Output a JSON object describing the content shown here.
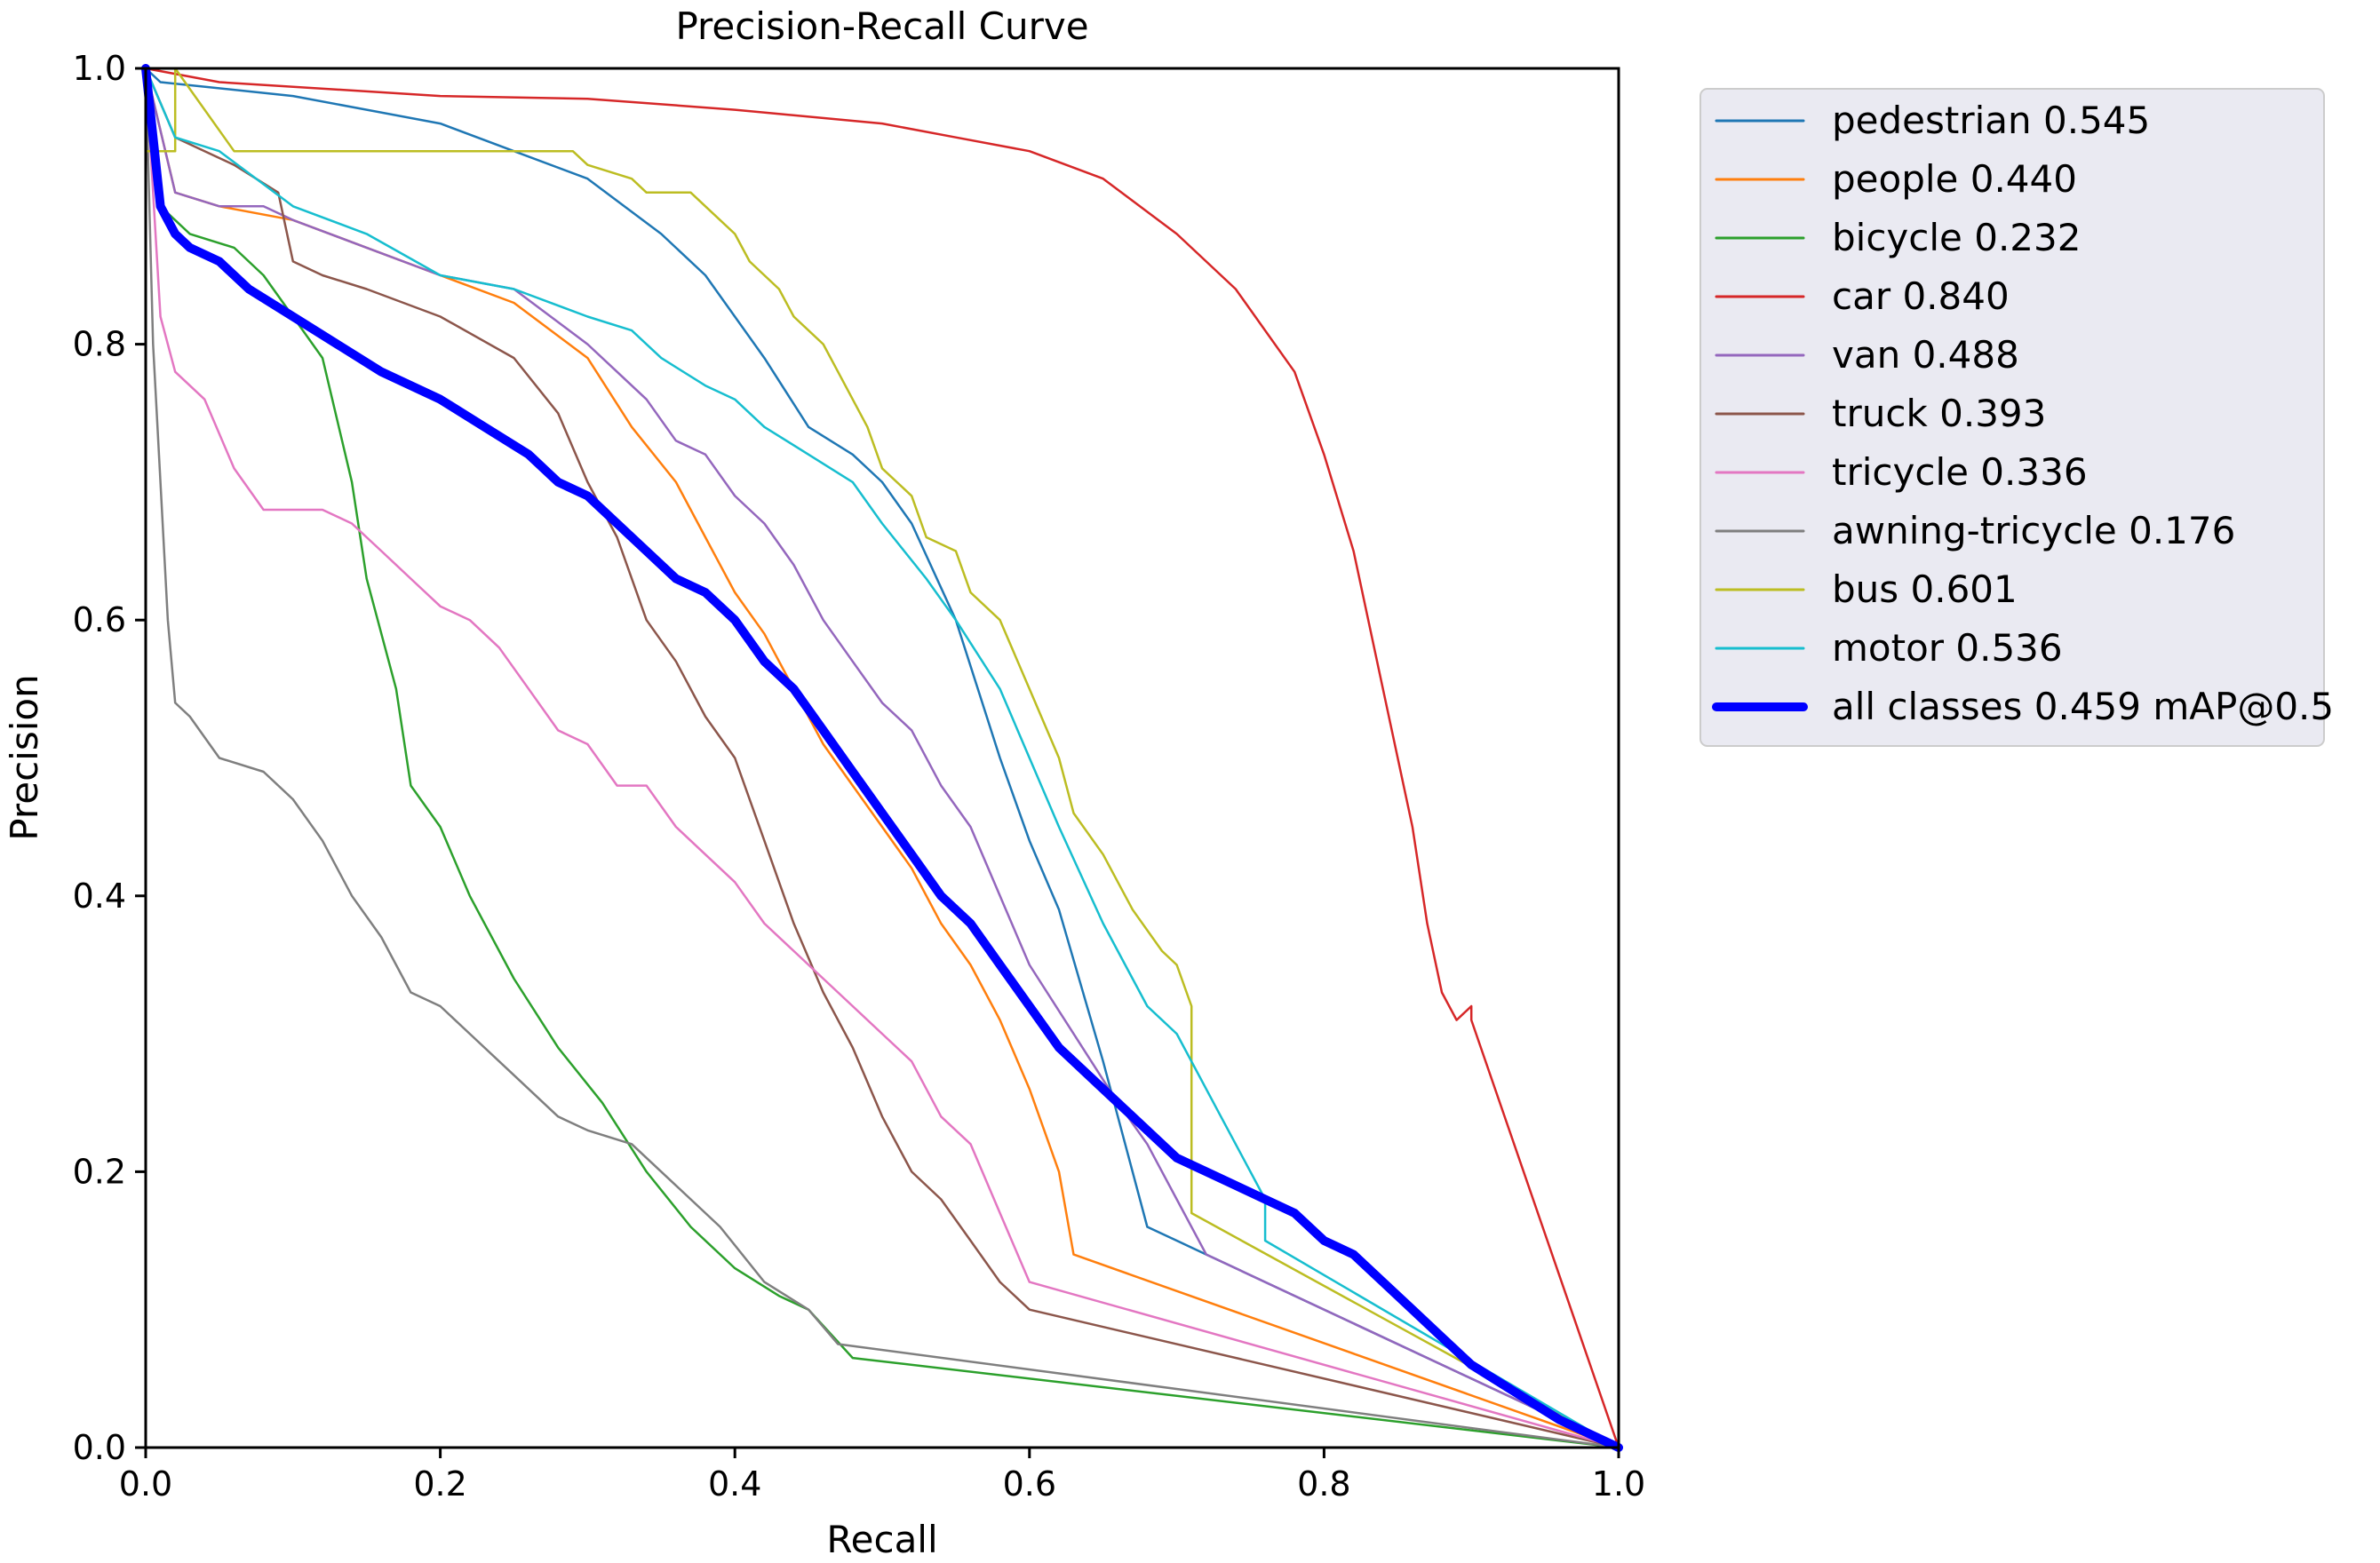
{
  "chart_data": {
    "type": "line",
    "title": "Precision-Recall Curve",
    "xlabel": "Recall",
    "ylabel": "Precision",
    "xlim": [
      0,
      1
    ],
    "ylim": [
      0,
      1
    ],
    "xticks": [
      "0.0",
      "0.2",
      "0.4",
      "0.6",
      "0.8",
      "1.0"
    ],
    "yticks": [
      "0.0",
      "0.2",
      "0.4",
      "0.6",
      "0.8",
      "1.0"
    ],
    "legend_position": "outside-right",
    "series": [
      {
        "name": "pedestrian 0.545",
        "color": "#1f77b4",
        "width": 2.5,
        "x": [
          0,
          0.01,
          0.1,
          0.2,
          0.25,
          0.3,
          0.35,
          0.38,
          0.42,
          0.45,
          0.48,
          0.5,
          0.52,
          0.55,
          0.58,
          0.6,
          0.62,
          0.65,
          0.68,
          0.7,
          0.72,
          1.0
        ],
        "y": [
          1,
          0.99,
          0.98,
          0.96,
          0.94,
          0.92,
          0.88,
          0.85,
          0.79,
          0.74,
          0.72,
          0.7,
          0.67,
          0.6,
          0.5,
          0.44,
          0.39,
          0.28,
          0.16,
          0.15,
          0.14,
          0.0
        ]
      },
      {
        "name": "people 0.440",
        "color": "#ff7f0e",
        "width": 2.5,
        "x": [
          0,
          0.02,
          0.05,
          0.1,
          0.15,
          0.2,
          0.25,
          0.3,
          0.33,
          0.36,
          0.38,
          0.4,
          0.42,
          0.44,
          0.46,
          0.48,
          0.5,
          0.52,
          0.54,
          0.56,
          0.58,
          0.6,
          0.62,
          0.63,
          1.0
        ],
        "y": [
          1,
          0.91,
          0.9,
          0.89,
          0.87,
          0.85,
          0.83,
          0.79,
          0.74,
          0.7,
          0.66,
          0.62,
          0.59,
          0.55,
          0.51,
          0.48,
          0.45,
          0.42,
          0.38,
          0.35,
          0.31,
          0.26,
          0.2,
          0.14,
          0.0
        ]
      },
      {
        "name": "bicycle 0.232",
        "color": "#2ca02c",
        "width": 2.5,
        "x": [
          0,
          0.01,
          0.03,
          0.06,
          0.08,
          0.1,
          0.12,
          0.14,
          0.15,
          0.17,
          0.18,
          0.2,
          0.22,
          0.25,
          0.28,
          0.31,
          0.34,
          0.37,
          0.4,
          0.43,
          0.45,
          0.48,
          1.0
        ],
        "y": [
          1,
          0.9,
          0.88,
          0.87,
          0.85,
          0.82,
          0.79,
          0.7,
          0.63,
          0.55,
          0.48,
          0.45,
          0.4,
          0.34,
          0.29,
          0.25,
          0.2,
          0.16,
          0.13,
          0.11,
          0.1,
          0.065,
          0.0
        ]
      },
      {
        "name": "car 0.840",
        "color": "#d62728",
        "width": 2.5,
        "x": [
          0,
          0.05,
          0.2,
          0.3,
          0.4,
          0.5,
          0.55,
          0.6,
          0.65,
          0.7,
          0.74,
          0.78,
          0.8,
          0.82,
          0.84,
          0.86,
          0.87,
          0.88,
          0.89,
          0.9,
          0.9,
          1.0
        ],
        "y": [
          1,
          0.99,
          0.98,
          0.978,
          0.97,
          0.96,
          0.95,
          0.94,
          0.92,
          0.88,
          0.84,
          0.78,
          0.72,
          0.65,
          0.55,
          0.45,
          0.38,
          0.33,
          0.31,
          0.32,
          0.31,
          0.0
        ]
      },
      {
        "name": "van 0.488",
        "color": "#9467bd",
        "width": 2.5,
        "x": [
          0,
          0.02,
          0.05,
          0.08,
          0.1,
          0.15,
          0.2,
          0.25,
          0.3,
          0.32,
          0.34,
          0.36,
          0.38,
          0.4,
          0.42,
          0.44,
          0.46,
          0.48,
          0.5,
          0.52,
          0.54,
          0.56,
          0.58,
          0.6,
          0.63,
          0.66,
          0.68,
          0.7,
          0.72,
          1.0
        ],
        "y": [
          1,
          0.91,
          0.9,
          0.9,
          0.89,
          0.87,
          0.85,
          0.84,
          0.8,
          0.78,
          0.76,
          0.73,
          0.72,
          0.69,
          0.67,
          0.64,
          0.6,
          0.57,
          0.54,
          0.52,
          0.48,
          0.45,
          0.4,
          0.35,
          0.3,
          0.25,
          0.22,
          0.18,
          0.14,
          0.0
        ]
      },
      {
        "name": "truck 0.393",
        "color": "#8c564b",
        "width": 2.5,
        "x": [
          0,
          0.02,
          0.04,
          0.06,
          0.09,
          0.1,
          0.12,
          0.15,
          0.2,
          0.25,
          0.28,
          0.3,
          0.32,
          0.34,
          0.36,
          0.38,
          0.4,
          0.42,
          0.44,
          0.46,
          0.48,
          0.5,
          0.52,
          0.54,
          0.56,
          0.58,
          0.6,
          1.0
        ],
        "y": [
          1,
          0.95,
          0.94,
          0.93,
          0.91,
          0.86,
          0.85,
          0.84,
          0.82,
          0.79,
          0.75,
          0.7,
          0.66,
          0.6,
          0.57,
          0.53,
          0.5,
          0.44,
          0.38,
          0.33,
          0.29,
          0.24,
          0.2,
          0.18,
          0.15,
          0.12,
          0.1,
          0.0
        ]
      },
      {
        "name": "tricycle 0.336",
        "color": "#e377c2",
        "width": 2.5,
        "x": [
          0,
          0.01,
          0.02,
          0.04,
          0.06,
          0.08,
          0.1,
          0.12,
          0.14,
          0.16,
          0.18,
          0.2,
          0.22,
          0.24,
          0.26,
          0.28,
          0.3,
          0.32,
          0.34,
          0.36,
          0.38,
          0.4,
          0.42,
          0.44,
          0.46,
          0.48,
          0.5,
          0.52,
          0.54,
          0.56,
          0.58,
          0.6,
          1.0
        ],
        "y": [
          1,
          0.82,
          0.78,
          0.76,
          0.71,
          0.68,
          0.68,
          0.68,
          0.67,
          0.65,
          0.63,
          0.61,
          0.6,
          0.58,
          0.55,
          0.52,
          0.51,
          0.48,
          0.48,
          0.45,
          0.43,
          0.41,
          0.38,
          0.36,
          0.34,
          0.32,
          0.3,
          0.28,
          0.24,
          0.22,
          0.17,
          0.12,
          0.0
        ]
      },
      {
        "name": "awning-tricycle 0.176",
        "color": "#7f7f7f",
        "width": 2.5,
        "x": [
          0,
          0.005,
          0.01,
          0.015,
          0.02,
          0.03,
          0.05,
          0.08,
          0.1,
          0.12,
          0.14,
          0.16,
          0.18,
          0.2,
          0.22,
          0.25,
          0.28,
          0.3,
          0.33,
          0.36,
          0.39,
          0.42,
          0.45,
          0.47,
          1.0
        ],
        "y": [
          1,
          0.8,
          0.7,
          0.6,
          0.54,
          0.53,
          0.5,
          0.49,
          0.47,
          0.44,
          0.4,
          0.37,
          0.33,
          0.32,
          0.3,
          0.27,
          0.24,
          0.23,
          0.22,
          0.19,
          0.16,
          0.12,
          0.1,
          0.075,
          0.0
        ]
      },
      {
        "name": "bus 0.601",
        "color": "#bcbd22",
        "width": 2.5,
        "x": [
          0,
          0.02,
          0.02,
          0.06,
          0.1,
          0.2,
          0.29,
          0.3,
          0.33,
          0.34,
          0.37,
          0.38,
          0.4,
          0.41,
          0.43,
          0.44,
          0.46,
          0.47,
          0.49,
          0.5,
          0.52,
          0.53,
          0.55,
          0.56,
          0.58,
          0.6,
          0.62,
          0.63,
          0.65,
          0.66,
          0.67,
          0.69,
          0.7,
          0.71,
          0.71,
          1.0
        ],
        "y": [
          0.94,
          0.94,
          1,
          0.94,
          0.94,
          0.94,
          0.94,
          0.93,
          0.92,
          0.91,
          0.91,
          0.9,
          0.88,
          0.86,
          0.84,
          0.82,
          0.8,
          0.78,
          0.74,
          0.71,
          0.69,
          0.66,
          0.65,
          0.62,
          0.6,
          0.55,
          0.5,
          0.46,
          0.43,
          0.41,
          0.39,
          0.36,
          0.35,
          0.32,
          0.17,
          0.0
        ]
      },
      {
        "name": "motor 0.536",
        "color": "#17becf",
        "width": 2.5,
        "x": [
          0,
          0.02,
          0.05,
          0.1,
          0.15,
          0.2,
          0.25,
          0.3,
          0.33,
          0.35,
          0.38,
          0.4,
          0.42,
          0.45,
          0.48,
          0.5,
          0.53,
          0.55,
          0.58,
          0.6,
          0.62,
          0.65,
          0.68,
          0.7,
          0.73,
          0.76,
          0.76,
          1.0
        ],
        "y": [
          1,
          0.95,
          0.94,
          0.9,
          0.88,
          0.85,
          0.84,
          0.82,
          0.81,
          0.79,
          0.77,
          0.76,
          0.74,
          0.72,
          0.7,
          0.67,
          0.63,
          0.6,
          0.55,
          0.5,
          0.45,
          0.38,
          0.32,
          0.3,
          0.24,
          0.18,
          0.15,
          0.0
        ]
      },
      {
        "name": "all classes 0.459 mAP@0.5",
        "color": "#0000ff",
        "width": 10,
        "x": [
          0,
          0.01,
          0.02,
          0.03,
          0.05,
          0.07,
          0.1,
          0.13,
          0.16,
          0.2,
          0.23,
          0.26,
          0.28,
          0.3,
          0.32,
          0.34,
          0.36,
          0.38,
          0.4,
          0.42,
          0.44,
          0.46,
          0.48,
          0.5,
          0.52,
          0.54,
          0.56,
          0.58,
          0.6,
          0.62,
          0.64,
          0.66,
          0.68,
          0.7,
          0.72,
          0.74,
          0.76,
          0.78,
          0.8,
          0.82,
          0.84,
          0.86,
          0.88,
          0.9,
          0.93,
          0.96,
          1.0
        ],
        "y": [
          1,
          0.9,
          0.88,
          0.87,
          0.86,
          0.84,
          0.82,
          0.8,
          0.78,
          0.76,
          0.74,
          0.72,
          0.7,
          0.69,
          0.67,
          0.65,
          0.63,
          0.62,
          0.6,
          0.57,
          0.55,
          0.52,
          0.49,
          0.46,
          0.43,
          0.4,
          0.38,
          0.35,
          0.32,
          0.29,
          0.27,
          0.25,
          0.23,
          0.21,
          0.2,
          0.19,
          0.18,
          0.17,
          0.15,
          0.14,
          0.12,
          0.1,
          0.08,
          0.06,
          0.04,
          0.02,
          0.0
        ]
      }
    ]
  }
}
